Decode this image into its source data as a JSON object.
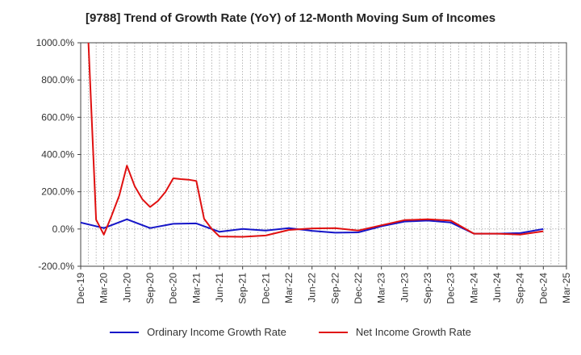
{
  "colors": {
    "ordinary": "#1515c8",
    "net": "#e01010",
    "grid": "#888888",
    "axis": "#444444"
  },
  "chart_data": {
    "type": "line",
    "title": "[9788]  Trend of Growth Rate (YoY) of 12-Month Moving Sum of Incomes",
    "xlabel": "",
    "ylabel": "",
    "ylim": [
      -200,
      1000
    ],
    "xlim": [
      "2019-12",
      "2025-03"
    ],
    "yticks": [
      -200,
      0,
      200,
      400,
      600,
      800,
      1000
    ],
    "ytick_labels": [
      "-200.0%",
      "0.0%",
      "200.0%",
      "400.0%",
      "600.0%",
      "800.0%",
      "1000.0%"
    ],
    "xtick_labels": [
      "Dec-19",
      "Mar-20",
      "Jun-20",
      "Sep-20",
      "Dec-20",
      "Mar-21",
      "Jun-21",
      "Sep-21",
      "Dec-21",
      "Mar-22",
      "Jun-22",
      "Sep-22",
      "Dec-22",
      "Mar-23",
      "Jun-23",
      "Sep-23",
      "Dec-23",
      "Mar-24",
      "Jun-24",
      "Sep-24",
      "Dec-24",
      "Mar-25"
    ],
    "grid": true,
    "legend_position": "bottom",
    "series": [
      {
        "name": "Ordinary Income Growth Rate",
        "color": "#1515c8",
        "points": [
          [
            "2019-12",
            35
          ],
          [
            "2020-03",
            5
          ],
          [
            "2020-06",
            52
          ],
          [
            "2020-09",
            5
          ],
          [
            "2020-12",
            28
          ],
          [
            "2021-03",
            30
          ],
          [
            "2021-06",
            -15
          ],
          [
            "2021-09",
            0
          ],
          [
            "2021-12",
            -8
          ],
          [
            "2022-03",
            5
          ],
          [
            "2022-06",
            -10
          ],
          [
            "2022-09",
            -20
          ],
          [
            "2022-12",
            -18
          ],
          [
            "2023-03",
            15
          ],
          [
            "2023-06",
            40
          ],
          [
            "2023-09",
            45
          ],
          [
            "2023-12",
            35
          ],
          [
            "2024-03",
            -25
          ],
          [
            "2024-06",
            -25
          ],
          [
            "2024-09",
            -22
          ],
          [
            "2024-12",
            0
          ]
        ]
      },
      {
        "name": "Net Income Growth Rate",
        "color": "#e01010",
        "points": [
          [
            "2020-01",
            1000
          ],
          [
            "2020-02",
            50
          ],
          [
            "2020-03",
            -30
          ],
          [
            "2020-04",
            70
          ],
          [
            "2020-05",
            180
          ],
          [
            "2020-06",
            340
          ],
          [
            "2020-07",
            230
          ],
          [
            "2020-08",
            160
          ],
          [
            "2020-09",
            118
          ],
          [
            "2020-10",
            150
          ],
          [
            "2020-11",
            200
          ],
          [
            "2020-12",
            272
          ],
          [
            "2021-01",
            268
          ],
          [
            "2021-02",
            265
          ],
          [
            "2021-03",
            258
          ],
          [
            "2021-04",
            55
          ],
          [
            "2021-05",
            0
          ],
          [
            "2021-06",
            -40
          ],
          [
            "2021-09",
            -42
          ],
          [
            "2021-12",
            -35
          ],
          [
            "2022-03",
            -5
          ],
          [
            "2022-06",
            3
          ],
          [
            "2022-09",
            5
          ],
          [
            "2022-12",
            -8
          ],
          [
            "2023-03",
            20
          ],
          [
            "2023-06",
            48
          ],
          [
            "2023-09",
            52
          ],
          [
            "2023-12",
            45
          ],
          [
            "2024-03",
            -25
          ],
          [
            "2024-06",
            -25
          ],
          [
            "2024-09",
            -30
          ],
          [
            "2024-12",
            -12
          ]
        ]
      }
    ]
  }
}
